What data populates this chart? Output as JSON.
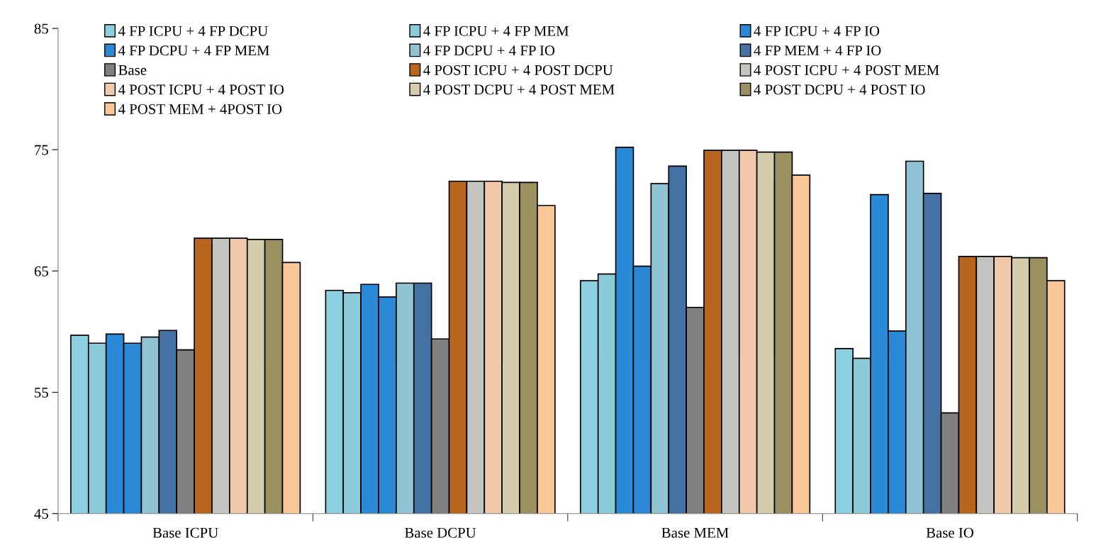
{
  "chart_data": {
    "type": "bar",
    "categories": [
      "Base ICPU",
      "Base DCPU",
      "Base MEM",
      "Base IO"
    ],
    "series": [
      {
        "name": "4 FP ICPU + 4 FP DCPU",
        "color": "#8ccfe0",
        "values": [
          59.7,
          63.4,
          64.2,
          58.6
        ]
      },
      {
        "name": "4 FP ICPU + 4 FP MEM",
        "color": "#8ccbd8",
        "values": [
          59.05,
          63.2,
          64.75,
          57.8
        ]
      },
      {
        "name": "4 FP ICPU + 4 FP IO",
        "color": "#2a8ad8",
        "values": [
          59.8,
          63.9,
          75.2,
          71.3
        ]
      },
      {
        "name": "4 FP DCPU + 4 FP MEM",
        "color": "#2a88d4",
        "values": [
          59.05,
          62.85,
          65.4,
          60.05
        ]
      },
      {
        "name": "4 FP DCPU + 4 FP IO",
        "color": "#90c4d4",
        "values": [
          59.55,
          64.0,
          72.2,
          74.05
        ]
      },
      {
        "name": "4 FP MEM + 4 FP IO",
        "color": "#4472a4",
        "values": [
          60.1,
          64.0,
          73.65,
          71.4
        ]
      },
      {
        "name": "Base",
        "color": "#808080",
        "values": [
          58.5,
          59.4,
          62.0,
          53.3
        ]
      },
      {
        "name": "4 POST ICPU + 4 POST DCPU",
        "color": "#b8651d",
        "values": [
          67.7,
          72.4,
          74.95,
          66.2
        ]
      },
      {
        "name": "4 POST ICPU + 4 POST MEM",
        "color": "#c4c4c0",
        "values": [
          67.7,
          72.4,
          74.95,
          66.2
        ]
      },
      {
        "name": "4 POST ICPU + 4 POST IO",
        "color": "#f2c8aa",
        "values": [
          67.7,
          72.4,
          74.95,
          66.2
        ]
      },
      {
        "name": "4 POST DCPU + 4 POST MEM",
        "color": "#d4ccaa",
        "values": [
          67.6,
          72.3,
          74.8,
          66.1
        ]
      },
      {
        "name": "4 POST DCPU + 4 POST IO",
        "color": "#9a9060",
        "values": [
          67.6,
          72.3,
          74.8,
          66.1
        ]
      },
      {
        "name": "4 POST MEM + 4POST IO",
        "color": "#fac898",
        "values": [
          65.7,
          70.4,
          72.9,
          64.2
        ]
      }
    ],
    "ylim": [
      45,
      85
    ],
    "yticks": [
      45,
      55,
      65,
      75,
      85
    ],
    "grid": false,
    "legend": "top"
  }
}
